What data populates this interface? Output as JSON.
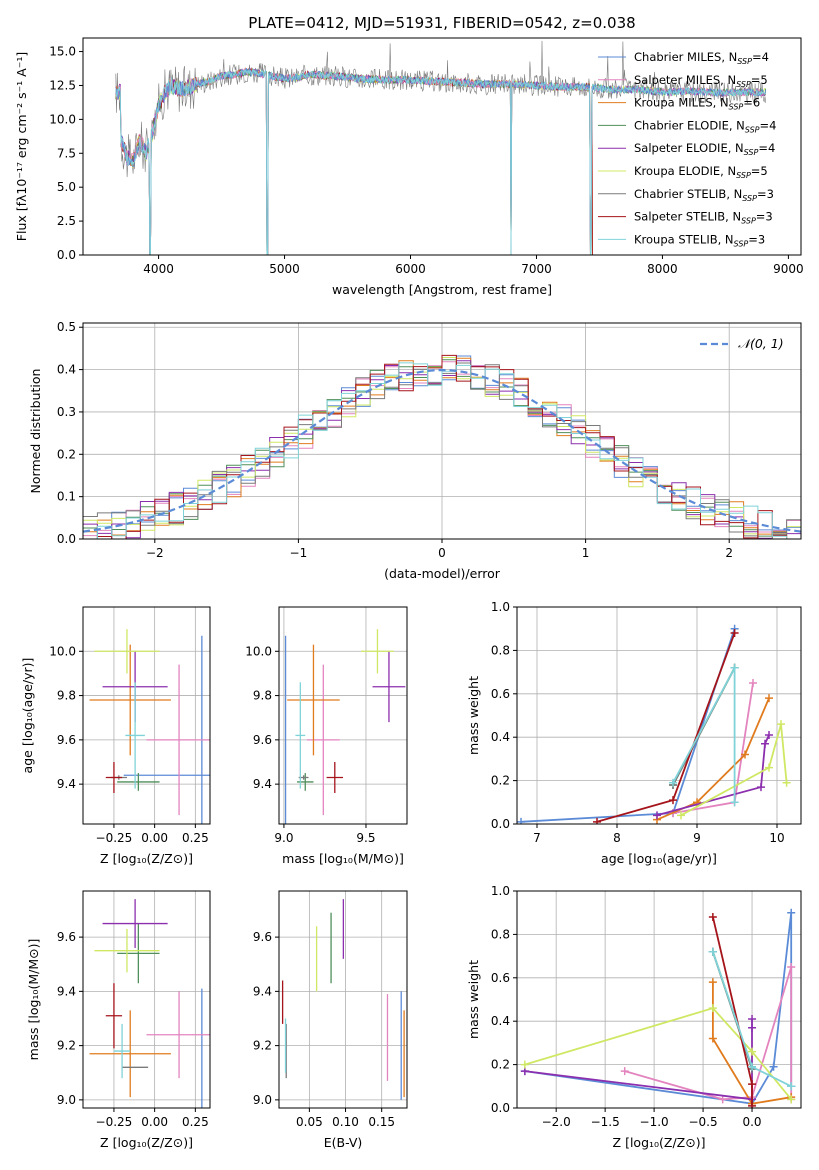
{
  "title": "PLATE=0412, MJD=51931, FIBERID=0542, z=0.038",
  "colors": {
    "chabrier_miles": "#5b8bd6",
    "salpeter_miles": "#e384bf",
    "kroupa_miles": "#e07b1e",
    "chabrier_elodie": "#4f8f5a",
    "salpeter_elodie": "#8c2fae",
    "kroupa_elodie": "#cfe864",
    "chabrier_stelib": "#7a7a7a",
    "salpeter_stelib": "#a5141a",
    "kroupa_stelib": "#7fd3d8"
  },
  "chart_data": [
    {
      "id": "spectrum",
      "type": "line",
      "xlabel": "wavelength [Angstrom, rest frame]",
      "ylabel": "Flux [fλ10⁻¹⁷ erg cm⁻² s⁻¹ A⁻¹]",
      "xlim": [
        3400,
        9100
      ],
      "ylim": [
        0,
        16
      ],
      "xticks": [
        "4000",
        "5000",
        "6000",
        "7000",
        "8000",
        "9000"
      ],
      "yticks": [
        "0.0",
        "2.5",
        "5.0",
        "7.5",
        "10.0",
        "12.5",
        "15.0"
      ],
      "grid": false,
      "legend_position": "top-right",
      "legend": [
        "Chabrier MILES, N_SSP=4",
        "Salpeter MILES, N_SSP=5",
        "Kroupa MILES, N_SSP=6",
        "Chabrier ELODIE, N_SSP=4",
        "Salpeter ELODIE, N_SSP=4",
        "Kroupa ELODIE, N_SSP=5",
        "Chabrier STELIB, N_SSP=3",
        "Salpeter STELIB, N_SSP=3",
        "Kroupa STELIB, N_SSP=3"
      ],
      "x": [
        3700,
        3750,
        3800,
        3850,
        3900,
        3950,
        4000,
        4050,
        4100,
        4200,
        4300,
        4400,
        4500,
        4600,
        4700,
        4800,
        4900,
        5000,
        5100,
        5200,
        5400,
        5600,
        5800,
        6000,
        6200,
        6400,
        6600,
        6800,
        7000,
        7200,
        7400,
        7600,
        7800,
        8000,
        8200,
        8400,
        8600,
        8800
      ],
      "y": [
        8.5,
        7.2,
        7.0,
        8.5,
        7.5,
        9.0,
        11.0,
        12.0,
        12.5,
        12.2,
        12.6,
        12.8,
        13.2,
        13.3,
        13.5,
        13.4,
        13.2,
        13.0,
        13.1,
        13.3,
        13.2,
        13.0,
        12.9,
        12.9,
        12.8,
        12.7,
        12.6,
        12.6,
        12.5,
        12.4,
        12.4,
        12.2,
        12.2,
        12.0,
        12.1,
        12.0,
        12.0,
        12.0
      ],
      "absorption_dips": [
        {
          "x": 3933,
          "y": 0
        },
        {
          "x": 4861,
          "y": 0
        },
        {
          "x": 6798,
          "y": 0
        },
        {
          "x": 7430,
          "y": 0
        }
      ]
    },
    {
      "id": "residuals",
      "type": "histogram",
      "xlabel": "(data-model)/error",
      "ylabel": "Normed distribution",
      "xlim": [
        -2.5,
        2.5
      ],
      "ylim": [
        0,
        0.51
      ],
      "xticks": [
        "−2",
        "−1",
        "0",
        "1",
        "2"
      ],
      "yticks": [
        "0.0",
        "0.1",
        "0.2",
        "0.3",
        "0.4",
        "0.5"
      ],
      "grid": true,
      "legend_position": "top-right",
      "legend": [
        "𝒩(0, 1)"
      ],
      "bin_width": 0.1
    },
    {
      "id": "age-vs-Z",
      "type": "errorbar",
      "xlabel": "Z [log₁₀(Z/Z⊙)]",
      "ylabel": "age  [log₁₀(age/yr)]",
      "xlim": [
        -0.44,
        0.34
      ],
      "ylim": [
        9.22,
        10.2
      ],
      "xticks": [
        "−0.25",
        "0.00",
        "0.25"
      ],
      "yticks": [
        "9.4",
        "9.6",
        "9.8",
        "10.0"
      ],
      "grid": true,
      "points": [
        {
          "color": "chabrier_miles",
          "x": 0.29,
          "xerr": 0.48,
          "y": 9.44,
          "yerr": 0.63
        },
        {
          "color": "salpeter_miles",
          "x": 0.15,
          "xerr": 0.2,
          "y": 9.6,
          "yerr": 0.34
        },
        {
          "color": "kroupa_miles",
          "x": -0.15,
          "xerr": 0.25,
          "y": 9.78,
          "yerr": 0.25
        },
        {
          "color": "chabrier_elodie",
          "x": -0.1,
          "xerr": 0.13,
          "y": 9.41,
          "yerr": 0.04
        },
        {
          "color": "salpeter_elodie",
          "x": -0.12,
          "xerr": 0.2,
          "y": 9.84,
          "yerr": 0.16
        },
        {
          "color": "kroupa_elodie",
          "x": -0.17,
          "xerr": 0.2,
          "y": 10.0,
          "yerr": 0.1
        },
        {
          "color": "chabrier_stelib",
          "x": -0.22,
          "xerr": 0.05,
          "y": 9.43,
          "yerr": 0.01
        },
        {
          "color": "salpeter_stelib",
          "x": -0.25,
          "xerr": 0.05,
          "y": 9.43,
          "yerr": 0.07
        },
        {
          "color": "kroupa_stelib",
          "x": -0.12,
          "xerr": 0.06,
          "y": 9.62,
          "yerr": 0.24
        }
      ]
    },
    {
      "id": "age-vs-mass",
      "type": "errorbar",
      "xlabel": "mass [log₁₀(M/M⊙)]",
      "ylabel": "",
      "xlim": [
        8.97,
        9.75
      ],
      "ylim": [
        9.22,
        10.2
      ],
      "xticks": [
        "9.0",
        "9.5"
      ],
      "yticks": [
        "9.4",
        "9.6",
        "9.8",
        "10.0"
      ],
      "grid": true,
      "points": [
        {
          "color": "chabrier_miles",
          "x": 9.01,
          "xerr": 0.0,
          "y": 9.44,
          "yerr": 0.63
        },
        {
          "color": "salpeter_miles",
          "x": 9.24,
          "xerr": 0.1,
          "y": 9.6,
          "yerr": 0.34
        },
        {
          "color": "kroupa_miles",
          "x": 9.18,
          "xerr": 0.16,
          "y": 9.78,
          "yerr": 0.25
        },
        {
          "color": "chabrier_elodie",
          "x": 9.13,
          "xerr": 0.05,
          "y": 9.41,
          "yerr": 0.04
        },
        {
          "color": "salpeter_elodie",
          "x": 9.64,
          "xerr": 0.1,
          "y": 9.84,
          "yerr": 0.16
        },
        {
          "color": "kroupa_elodie",
          "x": 9.57,
          "xerr": 0.1,
          "y": 10.0,
          "yerr": 0.1
        },
        {
          "color": "chabrier_stelib",
          "x": 9.12,
          "xerr": 0.03,
          "y": 9.43,
          "yerr": 0.01
        },
        {
          "color": "salpeter_stelib",
          "x": 9.31,
          "xerr": 0.05,
          "y": 9.43,
          "yerr": 0.07
        },
        {
          "color": "kroupa_stelib",
          "x": 9.1,
          "xerr": 0.03,
          "y": 9.62,
          "yerr": 0.24
        }
      ]
    },
    {
      "id": "mass-weight-vs-age",
      "type": "line",
      "xlabel": "age  [log₁₀(age/yr)]",
      "ylabel": "mass weight",
      "xlim": [
        6.75,
        10.3
      ],
      "ylim": [
        0,
        1.0
      ],
      "xticks": [
        "7",
        "8",
        "9",
        "10"
      ],
      "yticks": [
        "0.0",
        "0.2",
        "0.4",
        "0.6",
        "0.8",
        "1.0"
      ],
      "grid": true,
      "series": [
        {
          "color": "chabrier_miles",
          "x": [
            6.8,
            8.7,
            9.47
          ],
          "y": [
            0.01,
            0.05,
            0.9
          ]
        },
        {
          "color": "salpeter_miles",
          "x": [
            8.7,
            9.47,
            9.7
          ],
          "y": [
            0.05,
            0.1,
            0.65
          ]
        },
        {
          "color": "kroupa_miles",
          "x": [
            8.5,
            9.0,
            9.6,
            9.9
          ],
          "y": [
            0.02,
            0.1,
            0.32,
            0.58
          ]
        },
        {
          "color": "chabrier_elodie",
          "x": [
            8.7,
            9.47
          ],
          "y": [
            0.18,
            0.72
          ]
        },
        {
          "color": "salpeter_elodie",
          "x": [
            8.5,
            9.8,
            9.85,
            9.9
          ],
          "y": [
            0.04,
            0.17,
            0.37,
            0.41
          ]
        },
        {
          "color": "kroupa_elodie",
          "x": [
            8.8,
            9.9,
            10.05,
            10.12
          ],
          "y": [
            0.04,
            0.26,
            0.46,
            0.19
          ]
        },
        {
          "color": "chabrier_stelib",
          "x": [
            8.7,
            9.47
          ],
          "y": [
            0.18,
            0.72
          ]
        },
        {
          "color": "salpeter_stelib",
          "x": [
            7.75,
            8.7,
            9.47
          ],
          "y": [
            0.01,
            0.11,
            0.88
          ]
        },
        {
          "color": "kroupa_stelib",
          "x": [
            8.7,
            9.47,
            9.47
          ],
          "y": [
            0.19,
            0.72,
            0.1
          ]
        }
      ]
    },
    {
      "id": "mass-vs-Z",
      "type": "errorbar",
      "xlabel": "Z [log₁₀(Z/Z⊙)]",
      "ylabel": "mass [log₁₀(M/M⊙)]",
      "xlim": [
        -0.44,
        0.34
      ],
      "ylim": [
        8.97,
        9.77
      ],
      "xticks": [
        "−0.25",
        "0.00",
        "0.25"
      ],
      "yticks": [
        "9.0",
        "9.2",
        "9.4",
        "9.6"
      ],
      "grid": true,
      "points": [
        {
          "color": "chabrier_miles",
          "x": 0.29,
          "xerr": 0.0,
          "y": 9.01,
          "yerr": 0.4
        },
        {
          "color": "salpeter_miles",
          "x": 0.15,
          "xerr": 0.2,
          "y": 9.24,
          "yerr": 0.16
        },
        {
          "color": "kroupa_miles",
          "x": -0.15,
          "xerr": 0.25,
          "y": 9.17,
          "yerr": 0.16
        },
        {
          "color": "chabrier_elodie",
          "x": -0.1,
          "xerr": 0.13,
          "y": 9.54,
          "yerr": 0.11
        },
        {
          "color": "salpeter_elodie",
          "x": -0.12,
          "xerr": 0.2,
          "y": 9.65,
          "yerr": 0.09
        },
        {
          "color": "kroupa_elodie",
          "x": -0.17,
          "xerr": 0.2,
          "y": 9.55,
          "yerr": 0.08
        },
        {
          "color": "chabrier_stelib",
          "x": -0.12,
          "xerr": 0.08,
          "y": 9.12,
          "yerr": 0.0
        },
        {
          "color": "salpeter_stelib",
          "x": -0.25,
          "xerr": 0.05,
          "y": 9.31,
          "yerr": 0.12
        },
        {
          "color": "kroupa_stelib",
          "x": -0.2,
          "xerr": 0.05,
          "y": 9.18,
          "yerr": 0.1
        }
      ]
    },
    {
      "id": "mass-vs-EBV",
      "type": "errorbar",
      "xlabel": "E(B-V)",
      "ylabel": "",
      "xlim": [
        0.008,
        0.185
      ],
      "ylim": [
        8.97,
        9.77
      ],
      "xticks": [
        "0.05",
        "0.10",
        "0.15"
      ],
      "yticks": [
        "9.0",
        "9.2",
        "9.4",
        "9.6"
      ],
      "grid": true,
      "points": [
        {
          "color": "chabrier_miles",
          "x": 0.177,
          "xerr": 0.0,
          "y": 9.2,
          "yerr": 0.2
        },
        {
          "color": "salpeter_miles",
          "x": 0.158,
          "xerr": 0.0,
          "y": 9.23,
          "yerr": 0.16
        },
        {
          "color": "kroupa_miles",
          "x": 0.181,
          "xerr": 0.0,
          "y": 9.17,
          "yerr": 0.16
        },
        {
          "color": "chabrier_elodie",
          "x": 0.08,
          "xerr": 0.0,
          "y": 9.56,
          "yerr": 0.13
        },
        {
          "color": "salpeter_elodie",
          "x": 0.097,
          "xerr": 0.0,
          "y": 9.63,
          "yerr": 0.11
        },
        {
          "color": "kroupa_elodie",
          "x": 0.06,
          "xerr": 0.0,
          "y": 9.52,
          "yerr": 0.12
        },
        {
          "color": "chabrier_stelib",
          "x": 0.018,
          "xerr": 0.0,
          "y": 9.18,
          "yerr": 0.1
        },
        {
          "color": "salpeter_stelib",
          "x": 0.013,
          "xerr": 0.0,
          "y": 9.36,
          "yerr": 0.08
        },
        {
          "color": "kroupa_stelib",
          "x": 0.017,
          "xerr": 0.0,
          "y": 9.2,
          "yerr": 0.1
        }
      ]
    },
    {
      "id": "mass-weight-vs-Z",
      "type": "line",
      "xlabel": "Z [log₁₀(Z/Z⊙)]",
      "ylabel": "mass weight",
      "xlim": [
        -2.4,
        0.5
      ],
      "ylim": [
        0,
        1.0
      ],
      "xticks": [
        "−2.0",
        "−1.5",
        "−1.0",
        "−0.5",
        "0.0"
      ],
      "yticks": [
        "0.0",
        "0.2",
        "0.4",
        "0.6",
        "0.8",
        "1.0"
      ],
      "grid": true,
      "series": [
        {
          "color": "chabrier_miles",
          "x": [
            -2.32,
            0.0,
            0.22,
            0.4,
            0.4,
            0.4
          ],
          "y": [
            0.17,
            0.02,
            0.19,
            0.9,
            0.1,
            0.1
          ]
        },
        {
          "color": "salpeter_miles",
          "x": [
            -1.3,
            -0.3,
            0.0,
            0.4,
            0.4
          ],
          "y": [
            0.17,
            0.04,
            0.05,
            0.65,
            0.04
          ]
        },
        {
          "color": "kroupa_miles",
          "x": [
            -0.4,
            -0.4,
            0.0,
            0.4
          ],
          "y": [
            0.58,
            0.32,
            0.02,
            0.05
          ]
        },
        {
          "color": "chabrier_elodie",
          "x": [
            -0.4,
            0.0
          ],
          "y": [
            0.72,
            0.18
          ]
        },
        {
          "color": "salpeter_elodie",
          "x": [
            -2.32,
            0.0,
            0.0,
            0.0
          ],
          "y": [
            0.17,
            0.04,
            0.41,
            0.37
          ]
        },
        {
          "color": "kroupa_elodie",
          "x": [
            -2.32,
            -0.4,
            0.0,
            0.4
          ],
          "y": [
            0.2,
            0.46,
            0.26,
            0.04
          ]
        },
        {
          "color": "chabrier_stelib",
          "x": [
            -0.4,
            0.0
          ],
          "y": [
            0.72,
            0.18
          ]
        },
        {
          "color": "salpeter_stelib",
          "x": [
            -0.4,
            0.0,
            0.0
          ],
          "y": [
            0.88,
            0.11,
            0.01
          ]
        },
        {
          "color": "kroupa_stelib",
          "x": [
            -0.4,
            0.0,
            0.4
          ],
          "y": [
            0.72,
            0.19,
            0.1
          ]
        }
      ]
    }
  ]
}
